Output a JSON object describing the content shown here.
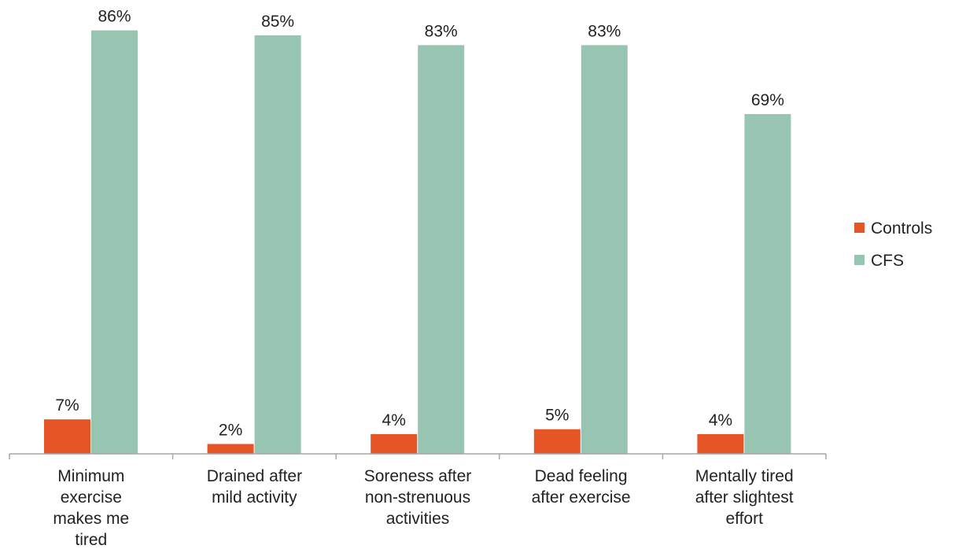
{
  "chart_data": {
    "type": "bar",
    "categories": [
      [
        "Minimum",
        "exercise",
        "makes me",
        "tired"
      ],
      [
        "Drained after",
        "mild activity"
      ],
      [
        "Soreness after",
        "non-strenuous",
        "activities"
      ],
      [
        "Dead feeling",
        "after exercise"
      ],
      [
        "Mentally tired",
        "after slightest",
        "effort"
      ]
    ],
    "series": [
      {
        "name": "Controls",
        "values": [
          7,
          2,
          4,
          5,
          4
        ],
        "labels": [
          "7%",
          "2%",
          "4%",
          "5%",
          "4%"
        ],
        "color": "#e55525"
      },
      {
        "name": "CFS",
        "values": [
          86,
          85,
          83,
          83,
          69
        ],
        "labels": [
          "86%",
          "85%",
          "83%",
          "83%",
          "69%"
        ],
        "color": "#98c4b2"
      }
    ],
    "ylim": [
      0,
      100
    ],
    "grid": false,
    "legend": "right",
    "axis_color": "#a6a6a6"
  }
}
